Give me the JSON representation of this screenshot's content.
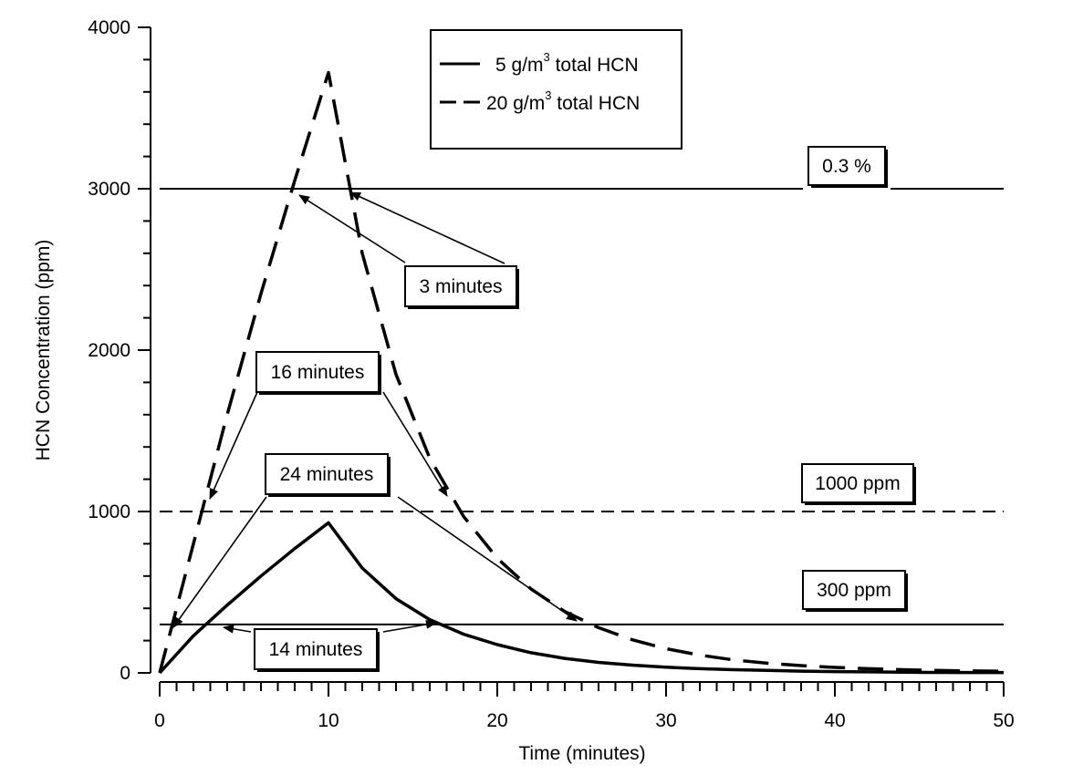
{
  "chart_data": {
    "type": "line",
    "xlabel": "Time (minutes)",
    "ylabel": "HCN Concentration (ppm)",
    "xlim": [
      0,
      50
    ],
    "ylim": [
      0,
      4000
    ],
    "xticks": [
      0,
      10,
      20,
      30,
      40,
      50
    ],
    "yticks": [
      0,
      1000,
      2000,
      3000,
      4000
    ],
    "x_minor_step": 1,
    "y_minor_step": 200,
    "grid": false,
    "legend_position": "top-center",
    "series": [
      {
        "name": "5 g/m3 total HCN",
        "legend_main": "5 g/m",
        "legend_sup": "3",
        "legend_tail": " total HCN",
        "style": "solid",
        "x": [
          0,
          2,
          4,
          6,
          8,
          10,
          12,
          14,
          16,
          18,
          20,
          22,
          24,
          26,
          28,
          30,
          32,
          34,
          36,
          38,
          40,
          42,
          44,
          46,
          48,
          50
        ],
        "y": [
          0,
          230,
          420,
          600,
          770,
          930,
          650,
          460,
          330,
          240,
          175,
          125,
          90,
          65,
          48,
          35,
          26,
          20,
          15,
          11,
          8,
          6,
          4,
          3,
          2,
          2
        ]
      },
      {
        "name": "20 g/m3 total HCN",
        "legend_main": "20 g/m",
        "legend_sup": "3",
        "legend_tail": " total HCN",
        "style": "dashed",
        "x": [
          0,
          2,
          4,
          6,
          8,
          10,
          12,
          14,
          16,
          18,
          20,
          22,
          24,
          26,
          28,
          30,
          32,
          34,
          36,
          38,
          40,
          42,
          44,
          46,
          48,
          50
        ],
        "y": [
          0,
          800,
          1600,
          2350,
          3050,
          3720,
          2600,
          1850,
          1330,
          970,
          710,
          520,
          380,
          280,
          205,
          150,
          110,
          80,
          60,
          45,
          34,
          26,
          20,
          15,
          12,
          10
        ]
      }
    ],
    "reference_lines": [
      {
        "y": 3000,
        "style": "solid",
        "label": "0.3 %"
      },
      {
        "y": 1000,
        "style": "dashed",
        "label": "1000 ppm"
      },
      {
        "y": 300,
        "style": "solid",
        "label": "300 ppm"
      }
    ],
    "annotations": [
      {
        "text": "3 minutes"
      },
      {
        "text": "16 minutes"
      },
      {
        "text": "24 minutes"
      },
      {
        "text": "14 minutes"
      }
    ]
  }
}
